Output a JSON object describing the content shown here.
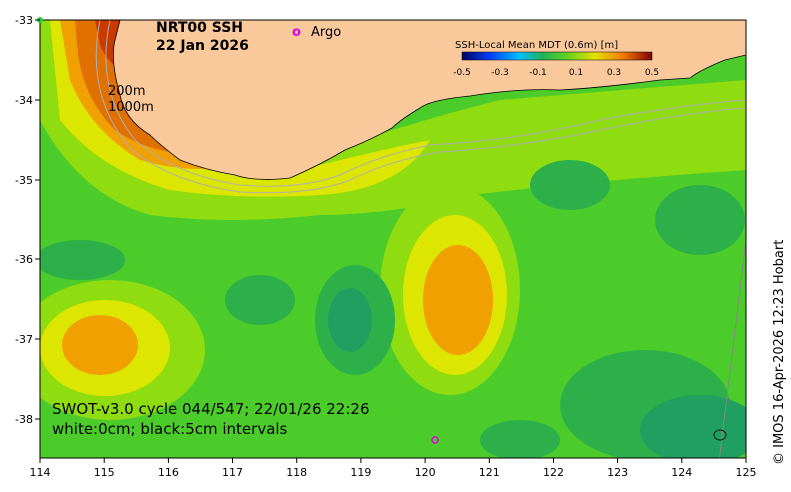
{
  "map": {
    "title": "NRT00 SSH",
    "date": "22 Jan 2026",
    "argo_marker": "o",
    "argo_label": "Argo",
    "isobath_200": "200m",
    "isobath_1000": "1000m",
    "swot_caption": "SWOT-v3.0 cycle 044/547; 22/01/26 22:26",
    "contour_caption": "white:0cm; black:5cm intervals",
    "credit": "© IMOS 16-Apr-2026 12:23 Hobart",
    "colorbar": {
      "title": "SSH-Local Mean MDT (0.6m) [m]",
      "ticks": [
        "-0.5",
        "-0.3",
        "-0.1",
        "0.1",
        "0.3",
        "0.5"
      ]
    },
    "axes": {
      "x_ticks": [
        "114",
        "115",
        "116",
        "117",
        "118",
        "119",
        "120",
        "121",
        "122",
        "123",
        "124",
        "125"
      ],
      "y_ticks": [
        "-33",
        "-34",
        "-35",
        "-36",
        "-37",
        "-38"
      ]
    },
    "colors": {
      "land": "#f9c99c",
      "green_low": "#2db04a",
      "green": "#4ccc2a",
      "lime": "#8fdc10",
      "yellow": "#dde600",
      "orange": "#f0a000",
      "dark_orange": "#e07000",
      "red": "#c83a00"
    }
  }
}
